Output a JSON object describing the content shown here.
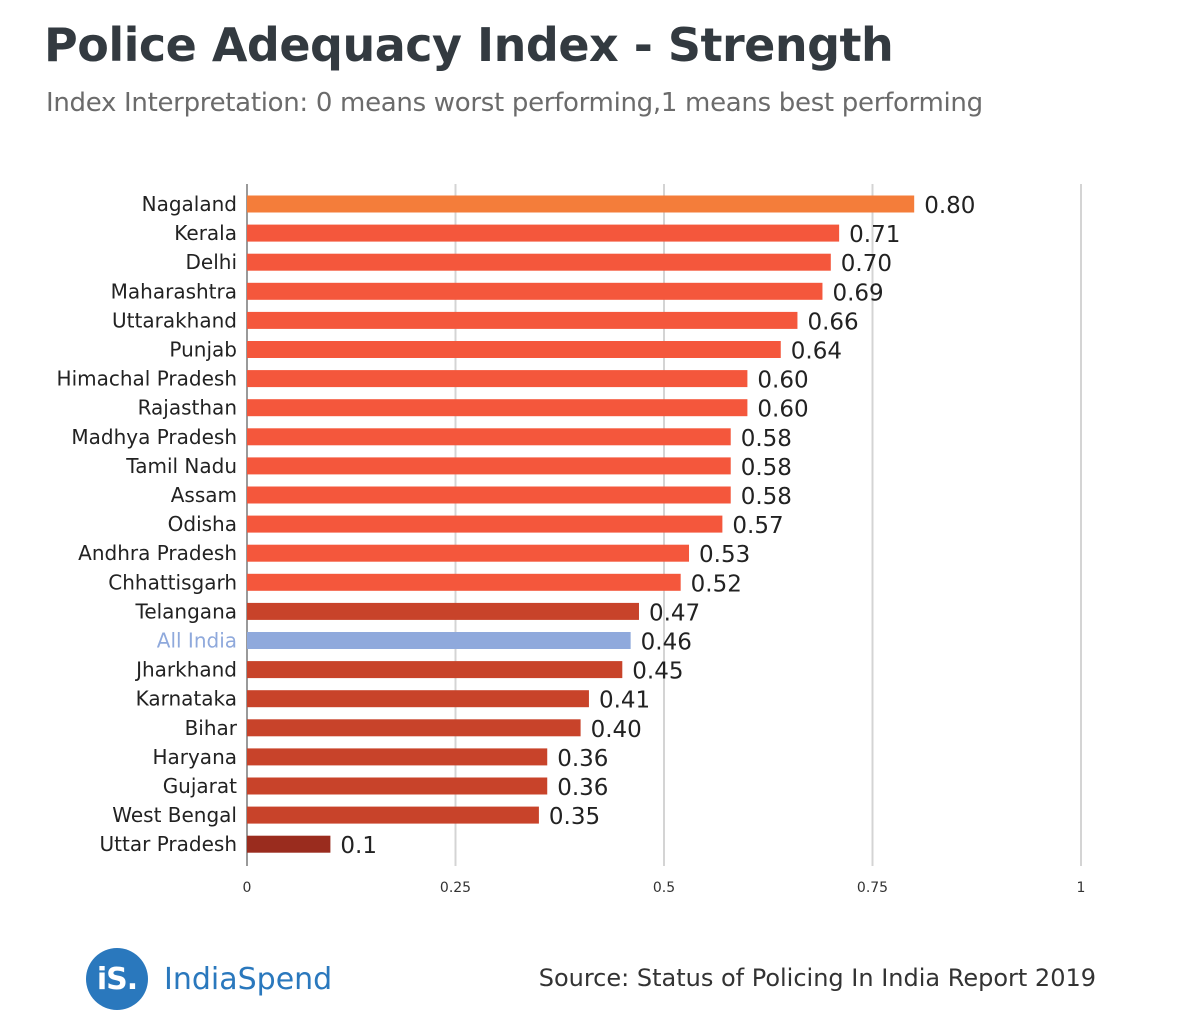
{
  "chart_data": {
    "type": "bar",
    "orientation": "horizontal",
    "title": "Police Adequacy Index - Strength",
    "subtitle": "Index Interpretation: 0 means worst performing,1 means best performing",
    "categories": [
      "Nagaland",
      "Kerala",
      "Delhi",
      "Maharashtra",
      "Uttarakhand",
      "Punjab",
      "Himachal Pradesh",
      "Rajasthan",
      "Madhya Pradesh",
      "Tamil Nadu",
      "Assam",
      "Odisha",
      "Andhra Pradesh",
      "Chhattisgarh",
      "Telangana",
      "All India",
      "Jharkhand",
      "Karnataka",
      "Bihar",
      "Haryana",
      "Gujarat",
      "West Bengal",
      "Uttar Pradesh"
    ],
    "values": [
      0.8,
      0.71,
      0.7,
      0.69,
      0.66,
      0.64,
      0.6,
      0.6,
      0.58,
      0.58,
      0.58,
      0.57,
      0.53,
      0.52,
      0.47,
      0.46,
      0.45,
      0.41,
      0.4,
      0.36,
      0.36,
      0.35,
      0.1
    ],
    "value_labels": [
      "0.80",
      "0.71",
      "0.70",
      "0.69",
      "0.66",
      "0.64",
      "0.60",
      "0.60",
      "0.58",
      "0.58",
      "0.58",
      "0.57",
      "0.53",
      "0.52",
      "0.47",
      "0.46",
      "0.45",
      "0.41",
      "0.40",
      "0.36",
      "0.36",
      "0.35",
      "0.1"
    ],
    "highlight_category": "All India",
    "xlim": [
      0,
      1
    ],
    "xticks": [
      0,
      0.25,
      0.5,
      0.75,
      1
    ],
    "xtick_labels": [
      "0",
      "0.25",
      "0.5",
      "0.75",
      "1"
    ],
    "grid": true,
    "xlabel": "",
    "ylabel": "",
    "colors": {
      "top": "#f47d3a",
      "above_average": "#f4573c",
      "below_average": "#c8432a",
      "highlight": "#8fa9dc",
      "lowest": "#9a2c1e"
    }
  },
  "footer": {
    "logo_mark": "iS.",
    "brand": "IndiaSpend",
    "source": "Source: Status of Policing In India Report 2019"
  }
}
